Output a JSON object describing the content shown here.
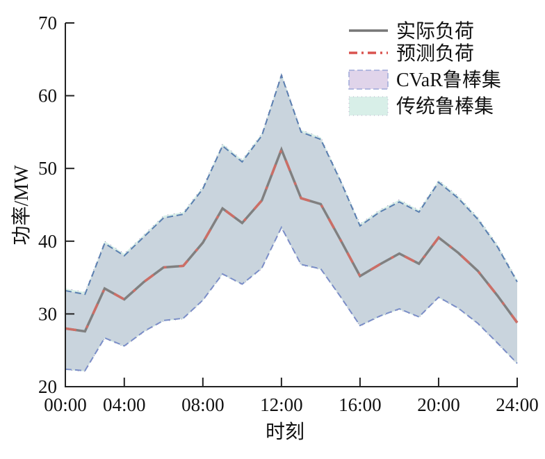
{
  "chart_data": {
    "type": "line",
    "title": "",
    "xlabel": "时刻",
    "ylabel": "功率/MW",
    "xlim": [
      1,
      24
    ],
    "ylim": [
      20,
      70
    ],
    "xticks": [
      1,
      4,
      8,
      12,
      16,
      20,
      24
    ],
    "xtick_labels": [
      "00:00",
      "04:00",
      "08:00",
      "12:00",
      "16:00",
      "20:00",
      "24:00"
    ],
    "yticks": [
      20,
      30,
      40,
      50,
      60,
      70
    ],
    "ytick_labels": [
      "20",
      "30",
      "40",
      "50",
      "60",
      "70"
    ],
    "grid": false,
    "legend_position": "top-right",
    "x": [
      1,
      2,
      3,
      4,
      5,
      6,
      7,
      8,
      9,
      10,
      11,
      12,
      13,
      14,
      15,
      16,
      17,
      18,
      19,
      20,
      21,
      22,
      23,
      24
    ],
    "series": [
      {
        "name": "实际负荷",
        "kind": "line",
        "color": "#808080",
        "values": [
          28.0,
          27.6,
          33.5,
          32.0,
          34.4,
          36.4,
          36.6,
          39.8,
          44.5,
          42.5,
          45.6,
          52.6,
          45.9,
          45.1,
          40.2,
          35.2,
          36.8,
          38.3,
          36.9,
          40.5,
          38.4,
          35.9,
          32.5,
          28.8
        ]
      },
      {
        "name": "预测负荷",
        "kind": "dashdot",
        "color": "#d9534f",
        "values": [
          28.0,
          27.6,
          33.5,
          32.0,
          34.4,
          36.4,
          36.6,
          39.8,
          44.5,
          42.5,
          45.6,
          52.6,
          45.9,
          45.1,
          40.2,
          35.2,
          36.8,
          38.3,
          36.9,
          40.5,
          38.4,
          35.9,
          32.5,
          28.8
        ]
      },
      {
        "name": "CVaR鲁棒集",
        "kind": "band",
        "color": "#e0d4ea",
        "edge": "#5a7fb0",
        "upper": [
          33.2,
          32.7,
          39.7,
          38.0,
          40.6,
          43.2,
          43.7,
          47.2,
          53.1,
          50.9,
          54.5,
          62.8,
          55.0,
          54.0,
          48.3,
          42.1,
          44.0,
          45.4,
          44.0,
          48.1,
          45.9,
          43.0,
          39.2,
          34.4
        ],
        "lower": [
          22.4,
          22.2,
          26.7,
          25.6,
          27.6,
          29.1,
          29.4,
          31.9,
          35.5,
          34.1,
          36.3,
          41.9,
          36.8,
          36.2,
          32.4,
          28.4,
          29.7,
          30.7,
          29.6,
          32.3,
          30.8,
          28.7,
          26.0,
          23.2
        ]
      },
      {
        "name": "传统鲁棒集",
        "kind": "band",
        "color": "#d8efe8",
        "edge": "#9a7fb5",
        "upper": [
          33.5,
          33.0,
          40.0,
          38.3,
          40.9,
          43.5,
          44.0,
          47.5,
          53.4,
          51.2,
          54.8,
          63.1,
          55.3,
          54.3,
          48.6,
          42.4,
          44.3,
          45.7,
          44.3,
          48.4,
          46.2,
          43.3,
          39.5,
          34.7
        ],
        "lower": [
          22.3,
          22.1,
          26.6,
          25.5,
          27.5,
          29.0,
          29.3,
          31.8,
          35.4,
          34.0,
          36.2,
          41.8,
          36.7,
          36.1,
          32.3,
          28.3,
          29.6,
          30.6,
          29.5,
          32.2,
          30.7,
          28.6,
          25.9,
          23.1
        ]
      }
    ]
  }
}
